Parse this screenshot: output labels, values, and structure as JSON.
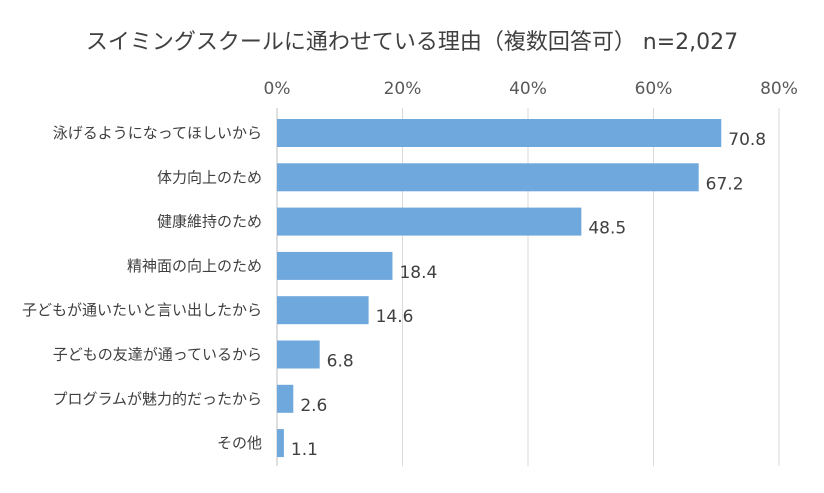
{
  "chart_data": {
    "type": "bar",
    "orientation": "horizontal",
    "title": "スイミングスクールに通わせている理由（複数回答可） n=2,027",
    "categories": [
      "泳げるようになってほしいから",
      "体力向上のため",
      "健康維持のため",
      "精神面の向上のため",
      "子どもが通いたいと言い出したから",
      "子どもの友達が通っているから",
      "プログラムが魅力的だったから",
      "その他"
    ],
    "values": [
      70.8,
      67.2,
      48.5,
      18.4,
      14.6,
      6.8,
      2.6,
      1.1
    ],
    "value_labels": [
      "70.8",
      "67.2",
      "48.5",
      "18.4",
      "14.6",
      "6.8",
      "2.6",
      "1.1"
    ],
    "xlim": [
      0,
      80
    ],
    "x_ticks": [
      0,
      20,
      40,
      60,
      80
    ],
    "x_tick_labels": [
      "0%",
      "20%",
      "40%",
      "60%",
      "80%"
    ],
    "axis_position": "top",
    "grid": true,
    "colors": {
      "bar": "#6fa8dc",
      "text": "#404040",
      "grid": "#d9d9d9"
    }
  }
}
